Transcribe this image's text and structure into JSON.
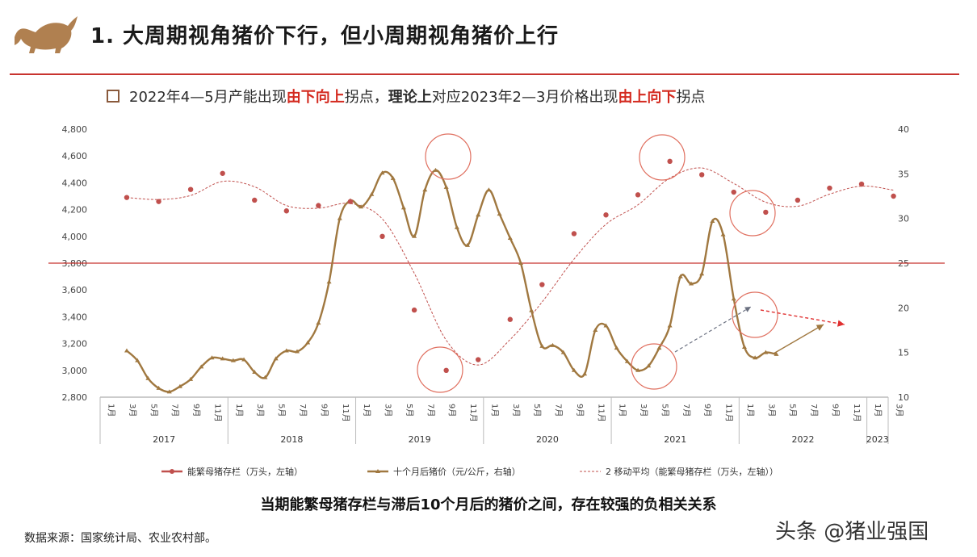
{
  "header": {
    "title": "1. 大周期视角猪价下行，但小周期视角猪价上行",
    "subtitle_parts": {
      "p1": "2022年4—5月产能出现",
      "p2": "由下向上",
      "p3": "拐点，",
      "p4": "理论上",
      "p5": "对应2023年2—3月价格出现",
      "p6": "由上向下",
      "p7": "拐点"
    }
  },
  "colors": {
    "accent_red": "#c8332f",
    "sow_series": "#c0504d",
    "price_series": "#a07840",
    "ma_series": "#c0504d",
    "annotation_circle": "#e07060",
    "arrow_gray": "#6a7080",
    "arrow_brown": "#a07840",
    "arrow_red": "#e03030"
  },
  "icons": {
    "logo": "bull-icon"
  },
  "chart_data": {
    "type": "line",
    "left_axis": {
      "min": 2800,
      "max": 4800,
      "ticks": [
        "4,800",
        "4,600",
        "4,400",
        "4,200",
        "4,000",
        "3,800",
        "3,600",
        "3,400",
        "3,200",
        "3,000",
        "2,800"
      ]
    },
    "right_axis": {
      "min": 10,
      "max": 40,
      "ticks": [
        "40",
        "35",
        "30",
        "25",
        "20",
        "15",
        "10"
      ]
    },
    "x_month_labels": [
      "1月",
      "3月",
      "5月",
      "7月",
      "9月",
      "11月",
      "1月",
      "3月",
      "5月",
      "7月",
      "9月",
      "11月",
      "1月",
      "3月",
      "5月",
      "7月",
      "9月",
      "11月",
      "1月",
      "3月",
      "5月",
      "7月",
      "9月",
      "11月",
      "1月",
      "3月",
      "5月",
      "7月",
      "9月",
      "11月",
      "1月",
      "3月",
      "5月",
      "7月",
      "9月",
      "11月",
      "1月",
      "3月"
    ],
    "x_year_labels": [
      "2017",
      "2018",
      "2019",
      "2020",
      "2021",
      "2022",
      "2023"
    ],
    "legend": [
      "能繁母猪存栏（万头，左轴）",
      "十个月后猪价（元/公斤，右轴）",
      "2 移动平均（能繁母猪存栏（万头，左轴））"
    ],
    "series": [
      {
        "name": "能繁母猪存栏（万头，左轴）",
        "axis": "left",
        "x": [
          "2017-03",
          "2017-06",
          "2017-09",
          "2017-12",
          "2018-03",
          "2018-06",
          "2018-09",
          "2018-12",
          "2019-03",
          "2019-06",
          "2019-09",
          "2019-12",
          "2020-03",
          "2020-06",
          "2020-09",
          "2020-12",
          "2021-03",
          "2021-06",
          "2021-09",
          "2021-12",
          "2022-03",
          "2022-06",
          "2022-09",
          "2022-12",
          "2023-03"
        ],
        "values": [
          4290,
          4260,
          4350,
          4470,
          4270,
          4190,
          4230,
          4260,
          4000,
          3450,
          3000,
          3080,
          3380,
          3640,
          4020,
          4160,
          4310,
          4560,
          4460,
          4330,
          4180,
          4270,
          4360,
          4390,
          4300
        ]
      },
      {
        "name": "十个月后猪价（元/公斤，右轴）",
        "axis": "right",
        "x": [
          "2017-03",
          "2017-04",
          "2017-05",
          "2017-06",
          "2017-07",
          "2017-08",
          "2017-09",
          "2017-10",
          "2017-11",
          "2017-12",
          "2018-01",
          "2018-02",
          "2018-03",
          "2018-04",
          "2018-05",
          "2018-06",
          "2018-07",
          "2018-08",
          "2018-09",
          "2018-10",
          "2018-11",
          "2018-12",
          "2019-01",
          "2019-02",
          "2019-03",
          "2019-04",
          "2019-05",
          "2019-06",
          "2019-07",
          "2019-08",
          "2019-09",
          "2019-10",
          "2019-11",
          "2019-12",
          "2020-01",
          "2020-02",
          "2020-03",
          "2020-04",
          "2020-05",
          "2020-06",
          "2020-07",
          "2020-08",
          "2020-09",
          "2020-10",
          "2020-11",
          "2020-12",
          "2021-01",
          "2021-02",
          "2021-03",
          "2021-04",
          "2021-05",
          "2021-06",
          "2021-07",
          "2021-08",
          "2021-09",
          "2021-10",
          "2021-11",
          "2021-12",
          "2022-01",
          "2022-02",
          "2022-03",
          "2022-04"
        ],
        "values": [
          15.2,
          14.1,
          12.1,
          11.0,
          10.6,
          11.2,
          12.0,
          13.4,
          14.4,
          14.3,
          14.1,
          14.2,
          12.8,
          12.2,
          14.3,
          15.2,
          15.1,
          16.1,
          18.3,
          22.9,
          30.0,
          32.0,
          31.3,
          32.7,
          35.1,
          34.5,
          31.2,
          28.0,
          33.2,
          35.4,
          33.5,
          29.0,
          27.0,
          30.4,
          33.2,
          30.5,
          27.8,
          25.0,
          19.7,
          15.7,
          15.8,
          15.0,
          13.0,
          12.6,
          17.5,
          18.0,
          15.5,
          14.0,
          13.0,
          13.5,
          15.5,
          18.0,
          23.5,
          22.7,
          23.8,
          29.7,
          28.2,
          21.0,
          15.6,
          14.4,
          15.0,
          14.8
        ]
      },
      {
        "name": "2 移动平均（能繁母猪存栏（万头，左轴））",
        "axis": "left",
        "x": [
          "2017-03",
          "2017-06",
          "2017-09",
          "2017-12",
          "2018-03",
          "2018-06",
          "2018-09",
          "2018-12",
          "2019-03",
          "2019-06",
          "2019-09",
          "2019-12",
          "2020-03",
          "2020-06",
          "2020-09",
          "2020-12",
          "2021-03",
          "2021-06",
          "2021-09",
          "2021-12",
          "2022-03",
          "2022-06",
          "2022-09",
          "2022-12",
          "2023-03"
        ],
        "values": [
          4290,
          4275,
          4305,
          4410,
          4370,
          4230,
          4210,
          4245,
          4130,
          3725,
          3225,
          3040,
          3230,
          3510,
          3830,
          4090,
          4235,
          4435,
          4510,
          4395,
          4255,
          4225,
          4315,
          4375,
          4345
        ]
      }
    ],
    "grid": false,
    "legend_position": "bottom"
  },
  "conclusion": "当期能繁母猪存栏与滞后10个月后的猪价之间，存在较强的负相关关系",
  "source": "数据来源：国家统计局、农业农村部。",
  "watermark": "头条 @猪业强国"
}
